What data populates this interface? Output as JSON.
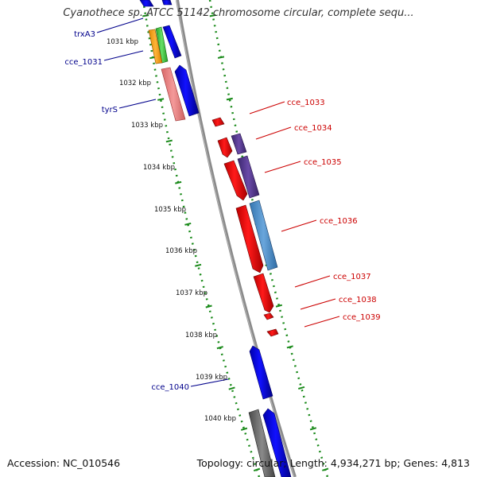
{
  "title": "Cyanothece sp. ATCC 51142 chromosome circular, complete sequ...",
  "footer": {
    "accession": "Accession: NC_010546",
    "stats": "Topology: circular; Length: 4,934,271 bp; Genes: 4,813"
  },
  "ruler": {
    "ticks": [
      "1031 kbp",
      "1032 kbp",
      "1033 kbp",
      "1034 kbp",
      "1035 kbp",
      "1036 kbp",
      "1037 kbp",
      "1038 kbp",
      "1039 kbp",
      "1040 kbp"
    ]
  },
  "genes": {
    "left": [
      {
        "label": "trxA3",
        "color": "#00008b"
      },
      {
        "label": "cce_1031",
        "color": "#00008b"
      },
      {
        "label": "tyrS",
        "color": "#00008b"
      },
      {
        "label": "cce_1040",
        "color": "#00008b"
      }
    ],
    "right": [
      {
        "label": "cce_1033",
        "color": "#cc0000"
      },
      {
        "label": "cce_1034",
        "color": "#cc0000"
      },
      {
        "label": "cce_1035",
        "color": "#cc0000"
      },
      {
        "label": "cce_1036",
        "color": "#cc0000"
      },
      {
        "label": "cce_1037",
        "color": "#cc0000"
      },
      {
        "label": "cce_1038",
        "color": "#cc0000"
      },
      {
        "label": "cce_1039",
        "color": "#cc0000"
      }
    ]
  },
  "colors": {
    "backbone": "#888888",
    "guide_dots": "#1a8a1a",
    "forward_strand": "#0000ee",
    "reverse_strand": "#ee0000",
    "cog_orange": "#f7a21b",
    "cog_green": "#44cc44",
    "cog_pink": "#f08080",
    "cog_purple": "#55398c",
    "cog_steelblue": "#4a8ac2",
    "cog_gray": "#666666"
  }
}
